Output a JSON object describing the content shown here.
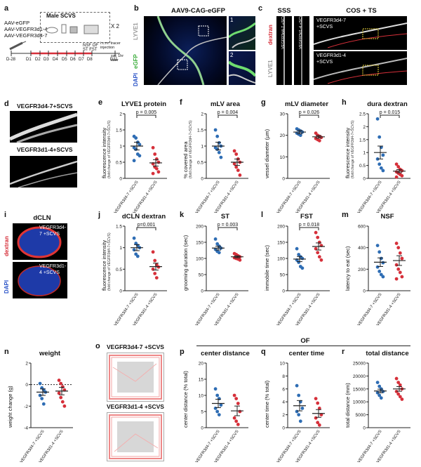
{
  "colors": {
    "blue": "#2e6db4",
    "red": "#d6303a",
    "egfp": "#4ec04e",
    "dapi": "#3a5fd6",
    "dextran": "#e03535"
  },
  "panel_a": {
    "label": "a",
    "aavs": [
      "AAV-eGFP",
      "AAV-VEGFR3d1-4",
      "AAV-VEGFR3d4-7"
    ],
    "box_title": "Male SCVS",
    "times_two": "X 2",
    "days": [
      "D-28",
      "D1",
      "D2",
      "D3",
      "D4",
      "D5",
      "D6",
      "D7",
      "D8",
      "D11"
    ],
    "tests": [
      "NSF",
      "ST",
      "OF",
      "FST"
    ],
    "injection_note": "i.c.m. tracer injection",
    "sac_note": "sac 1hr later"
  },
  "panel_b": {
    "label": "b",
    "title": "AAV9-CAG-eGFP",
    "channels": [
      "LYVE1",
      "eGFP",
      "DAPI"
    ],
    "insets": [
      "1",
      "2"
    ]
  },
  "panel_c": {
    "label": "c",
    "sss": "SSS",
    "cos": "COS + TS",
    "dextran": "dextran",
    "lyve1": "LYVE1",
    "group_a": "VEGFR3d4-7 +SCVS",
    "group_b": "VEGFR3d1-4 +SCVS"
  },
  "panel_d": {
    "label": "d",
    "group_a": "VEGFR3d4-7+SCVS",
    "group_b": "VEGFR3d1-4+SCVS"
  },
  "panel_i": {
    "label": "i",
    "title": "dCLN",
    "dextran": "dextran",
    "dapi": "DAPI",
    "group_a": "VEGFR3d4-7 +SCVS",
    "group_b": "VEGFR3d1-4 +SCVS"
  },
  "x_labels": [
    "VEGFR3d4-7 +SCVS",
    "VEGFR3d1-4 +SCVS"
  ],
  "fold_sub": "(fold change of VEGFR3d4-7+SCVS)",
  "of_header": "OF",
  "chart_data": [
    {
      "type": "scatter",
      "panel": "e",
      "title": "LYVE1 protein",
      "ylabel": "fluorescence intensity",
      "ylim": [
        0,
        2
      ],
      "yticks": [
        0,
        0.5,
        1,
        1.5,
        2
      ],
      "p": "p = 0.005",
      "series": [
        {
          "name": "VEGFR3d4-7 +SCVS",
          "mean": 1.0,
          "sem": 0.12,
          "values": [
            1.3,
            1.25,
            1.12,
            1.05,
            0.95,
            0.9,
            0.75,
            0.7,
            0.55
          ]
        },
        {
          "name": "VEGFR3d1-4 +SCVS",
          "mean": 0.48,
          "sem": 0.1,
          "values": [
            0.95,
            0.75,
            0.6,
            0.5,
            0.45,
            0.35,
            0.3,
            0.2,
            0.15
          ]
        }
      ]
    },
    {
      "type": "scatter",
      "panel": "f",
      "title": "mLV area",
      "ylabel": "% covered area",
      "ylim": [
        0,
        2
      ],
      "yticks": [
        0,
        0.5,
        1,
        1.5,
        2
      ],
      "p": "p = 0.004",
      "series": [
        {
          "name": "VEGFR3d4-7 +SCVS",
          "mean": 1.0,
          "sem": 0.12,
          "values": [
            1.5,
            1.3,
            1.1,
            1.0,
            0.95,
            0.9,
            0.8,
            0.65
          ]
        },
        {
          "name": "VEGFR3d1-4 +SCVS",
          "mean": 0.5,
          "sem": 0.1,
          "values": [
            0.85,
            0.75,
            0.6,
            0.5,
            0.45,
            0.35,
            0.25,
            0.1
          ]
        }
      ]
    },
    {
      "type": "scatter",
      "panel": "g",
      "title": "mLV diameter",
      "ylabel": "vessel diameter (µm)",
      "ylim": [
        0,
        30
      ],
      "yticks": [
        0,
        10,
        20,
        30
      ],
      "p": "p = 0.026",
      "series": [
        {
          "name": "VEGFR3d4-7 +SCVS",
          "mean": 21.5,
          "sem": 0.8,
          "values": [
            23,
            22.5,
            22,
            21.5,
            21,
            20.5,
            20
          ]
        },
        {
          "name": "VEGFR3d1-4 +SCVS",
          "mean": 19.3,
          "sem": 0.6,
          "values": [
            21,
            20,
            19.5,
            19,
            18.5,
            18,
            17.5
          ]
        }
      ]
    },
    {
      "type": "scatter",
      "panel": "h",
      "title": "dura dextran",
      "ylabel": "fluorescence intensity",
      "ylim": [
        0,
        2.5
      ],
      "yticks": [
        0,
        0.5,
        1,
        1.5,
        2,
        2.5
      ],
      "p": "p = 0.015",
      "series": [
        {
          "name": "VEGFR3d4-7 +SCVS",
          "mean": 1.0,
          "sem": 0.25,
          "values": [
            2.3,
            1.6,
            1.2,
            0.9,
            0.75,
            0.55,
            0.4,
            0.3
          ]
        },
        {
          "name": "VEGFR3d1-4 +SCVS",
          "mean": 0.28,
          "sem": 0.06,
          "values": [
            0.55,
            0.45,
            0.35,
            0.3,
            0.25,
            0.2,
            0.15,
            0.1,
            0.05
          ]
        }
      ]
    },
    {
      "type": "scatter",
      "panel": "j",
      "title": "dCLN dextran",
      "ylabel": "fluorescence intensity",
      "ylim": [
        0,
        1.5
      ],
      "yticks": [
        0,
        0.5,
        1,
        1.5
      ],
      "p": "p=0.001",
      "series": [
        {
          "name": "VEGFR3d4-7 +SCVS",
          "mean": 1.0,
          "sem": 0.07,
          "values": [
            1.22,
            1.1,
            1.05,
            1.0,
            0.95,
            0.85,
            0.8
          ]
        },
        {
          "name": "VEGFR3d1-4 +SCVS",
          "mean": 0.56,
          "sem": 0.08,
          "values": [
            0.9,
            0.7,
            0.6,
            0.55,
            0.5,
            0.4,
            0.3
          ]
        }
      ]
    },
    {
      "type": "scatter",
      "panel": "k",
      "title": "ST",
      "ylabel": "grooming duration (sec)",
      "ylim": [
        0,
        200
      ],
      "yticks": [
        0,
        50,
        100,
        150,
        200
      ],
      "p": "p = 0.003",
      "series": [
        {
          "name": "VEGFR3d4-7 +SCVS",
          "mean": 132,
          "sem": 6,
          "values": [
            160,
            145,
            138,
            132,
            128,
            122,
            118
          ]
        },
        {
          "name": "VEGFR3d1-4 +SCVS",
          "mean": 105,
          "sem": 3,
          "values": [
            115,
            112,
            108,
            105,
            102,
            100,
            98,
            95
          ]
        }
      ]
    },
    {
      "type": "scatter",
      "panel": "l",
      "title": "FST",
      "ylabel": "immobile time (sec)",
      "ylim": [
        0,
        200
      ],
      "yticks": [
        0,
        50,
        100,
        150,
        200
      ],
      "p": "p = 0.018",
      "series": [
        {
          "name": "VEGFR3d4-7 +SCVS",
          "mean": 98,
          "sem": 8,
          "values": [
            130,
            112,
            105,
            100,
            95,
            88,
            75,
            70
          ]
        },
        {
          "name": "VEGFR3d1-4 +SCVS",
          "mean": 137,
          "sem": 11,
          "values": [
            180,
            165,
            150,
            140,
            130,
            118,
            105,
            95
          ]
        }
      ]
    },
    {
      "type": "scatter",
      "panel": "m",
      "title": "NSF",
      "ylabel": "latency to eat (sec)",
      "ylim": [
        0,
        600
      ],
      "yticks": [
        0,
        200,
        400,
        600
      ],
      "p": "",
      "series": [
        {
          "name": "VEGFR3d4-7 +SCVS",
          "mean": 265,
          "sem": 40,
          "values": [
            420,
            360,
            300,
            260,
            220,
            180,
            150,
            130
          ]
        },
        {
          "name": "VEGFR3d1-4 +SCVS",
          "mean": 280,
          "sem": 45,
          "values": [
            440,
            400,
            350,
            300,
            240,
            200,
            170,
            130,
            110
          ]
        }
      ]
    },
    {
      "type": "scatter",
      "panel": "n",
      "title": "weight",
      "ylabel": "weight change (g)",
      "ylim": [
        -4,
        2
      ],
      "yticks": [
        -4,
        -2,
        0,
        2
      ],
      "p": "",
      "series": [
        {
          "name": "VEGFR3d4-7 +SCVS",
          "mean": -0.7,
          "sem": 0.3,
          "values": [
            0.1,
            -0.3,
            -0.5,
            -0.7,
            -1.0,
            -1.3,
            -1.8
          ]
        },
        {
          "name": "VEGFR3d1-4 +SCVS",
          "mean": -0.6,
          "sem": 0.35,
          "values": [
            0.4,
            0.1,
            -0.2,
            -0.5,
            -0.8,
            -1.2,
            -1.6,
            -2.0
          ]
        }
      ]
    },
    {
      "type": "scatter",
      "panel": "p",
      "title": "center distance",
      "ylabel": "center distance (% total)",
      "ylim": [
        0,
        20
      ],
      "yticks": [
        0,
        5,
        10,
        15,
        20
      ],
      "p": "",
      "series": [
        {
          "name": "VEGFR3d4-7 +SCVS",
          "mean": 7.5,
          "sem": 1.3,
          "values": [
            12,
            10,
            9,
            7,
            6,
            5,
            4
          ]
        },
        {
          "name": "VEGFR3d1-4 +SCVS",
          "mean": 5.2,
          "sem": 1.5,
          "values": [
            10,
            9,
            7.5,
            5,
            3,
            2,
            1
          ]
        }
      ]
    },
    {
      "type": "scatter",
      "panel": "q",
      "title": "center time",
      "ylabel": "center time (% total)",
      "ylim": [
        0,
        10
      ],
      "yticks": [
        0,
        2,
        4,
        6,
        8,
        10
      ],
      "p": "",
      "series": [
        {
          "name": "VEGFR3d4-7 +SCVS",
          "mean": 3.4,
          "sem": 0.8,
          "values": [
            6.5,
            5,
            4,
            3,
            2.5,
            2,
            1
          ]
        },
        {
          "name": "VEGFR3d1-4 +SCVS",
          "mean": 2.2,
          "sem": 0.6,
          "values": [
            4.5,
            3.8,
            3,
            2,
            1.5,
            0.8,
            0.4
          ]
        }
      ]
    },
    {
      "type": "scatter",
      "panel": "r",
      "title": "total distance",
      "ylabel": "total distance (mm)",
      "ylim": [
        0,
        25000
      ],
      "yticks": [
        0,
        5000,
        10000,
        15000,
        20000,
        25000
      ],
      "p": "",
      "series": [
        {
          "name": "VEGFR3d4-7 +SCVS",
          "mean": 14200,
          "sem": 700,
          "values": [
            17500,
            16000,
            15000,
            14000,
            13500,
            12500,
            11500
          ]
        },
        {
          "name": "VEGFR3d1-4 +SCVS",
          "mean": 15000,
          "sem": 900,
          "values": [
            19000,
            17500,
            16500,
            15000,
            14000,
            13000,
            12000,
            11000
          ]
        }
      ]
    }
  ],
  "panel_o": {
    "label": "o",
    "group_a": "VEGFR3d4-7 +SCVS",
    "group_b": "VEGFR3d1-4 +SCVS"
  }
}
